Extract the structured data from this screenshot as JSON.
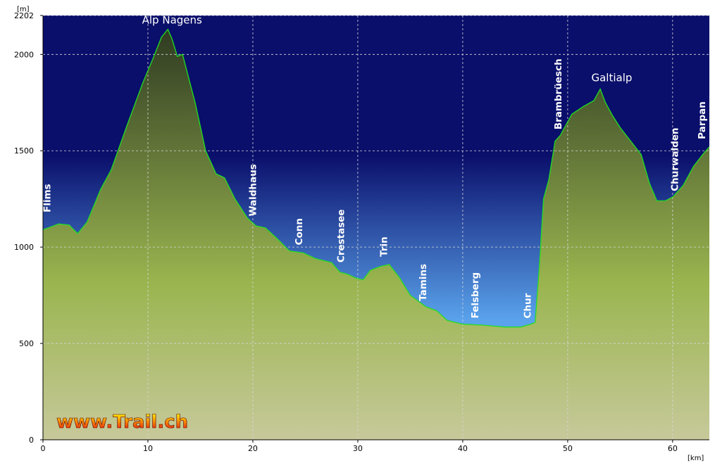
{
  "chart_data": {
    "type": "area",
    "xlabel": "[km]",
    "ylabel": "[m]",
    "xlim": [
      0,
      63.5
    ],
    "ylim": [
      0,
      2202
    ],
    "x_ticks": [
      0,
      10,
      20,
      30,
      40,
      50,
      60
    ],
    "y_ticks": [
      0,
      500,
      1000,
      1500,
      2000,
      2202
    ],
    "grid": true,
    "series": [
      {
        "x": [
          0,
          0.5,
          1.5,
          2.5,
          3.3,
          4.2,
          5.5,
          6.5,
          8,
          9.5,
          10.5,
          11.3,
          11.9,
          12.3,
          12.8,
          13.3,
          14.5,
          15.5,
          16.5,
          17.3,
          18.3,
          19.5,
          20.3,
          21.2,
          22.2,
          23.5,
          24.8,
          26,
          27.5,
          28.3,
          29,
          29.8,
          30.5,
          31.2,
          32.2,
          33,
          34,
          35,
          36.5,
          37.5,
          38.5,
          40,
          42,
          44,
          45.5,
          46.5,
          46.9,
          47.3,
          47.7,
          48.2,
          48.8,
          49.3,
          50.4,
          51.5,
          52.5,
          53.1,
          53.6,
          54.3,
          55,
          56,
          57,
          57.8,
          58.5,
          59.3,
          60,
          61,
          62,
          63,
          63.5
        ],
        "y": [
          1090,
          1100,
          1120,
          1115,
          1070,
          1130,
          1300,
          1400,
          1630,
          1850,
          1980,
          2090,
          2130,
          2080,
          1990,
          2000,
          1750,
          1500,
          1380,
          1360,
          1250,
          1150,
          1110,
          1100,
          1050,
          980,
          970,
          940,
          920,
          870,
          860,
          840,
          830,
          880,
          900,
          910,
          840,
          750,
          690,
          670,
          620,
          600,
          595,
          585,
          585,
          600,
          610,
          900,
          1250,
          1350,
          1550,
          1580,
          1690,
          1730,
          1760,
          1820,
          1750,
          1680,
          1620,
          1550,
          1480,
          1330,
          1240,
          1240,
          1260,
          1320,
          1420,
          1490,
          1520
        ]
      }
    ],
    "annotations": [
      {
        "text": "Flims",
        "x": 0.7,
        "y": 1180,
        "orientation": "vertical"
      },
      {
        "text": "Waldhaus",
        "x": 20.3,
        "y": 1160,
        "orientation": "vertical"
      },
      {
        "text": "Conn",
        "x": 24.7,
        "y": 1010,
        "orientation": "vertical"
      },
      {
        "text": "Crestasee",
        "x": 28.7,
        "y": 920,
        "orientation": "vertical"
      },
      {
        "text": "Trin",
        "x": 32.8,
        "y": 950,
        "orientation": "vertical"
      },
      {
        "text": "Tamins",
        "x": 36.5,
        "y": 720,
        "orientation": "vertical"
      },
      {
        "text": "Felsberg",
        "x": 41.5,
        "y": 630,
        "orientation": "vertical"
      },
      {
        "text": "Chur",
        "x": 46.5,
        "y": 630,
        "orientation": "vertical"
      },
      {
        "text": "Brambrüesch",
        "x": 49.4,
        "y": 1610,
        "orientation": "vertical"
      },
      {
        "text": "Churwalden",
        "x": 60.5,
        "y": 1290,
        "orientation": "vertical"
      },
      {
        "text": "Parpan",
        "x": 63.1,
        "y": 1560,
        "orientation": "vertical"
      },
      {
        "text": "Alp Nagens",
        "x": 12.3,
        "y": 2160,
        "orientation": "horizontal"
      },
      {
        "text": "Galtialp",
        "x": 54.2,
        "y": 1860,
        "orientation": "horizontal"
      }
    ]
  },
  "watermark": "www.Trail.ch",
  "colors": {
    "sky_top": "#0a0f6b",
    "sky_bottom": "#5aa3ec",
    "terrain_top": "#2e3a22",
    "terrain_mid": "#9ab54f",
    "terrain_bottom": "#c7c99a",
    "profile_line": "#22dd22",
    "grid": "#d8d8d8",
    "watermark_top": "#ffee00",
    "watermark_bottom": "#e8180c"
  }
}
